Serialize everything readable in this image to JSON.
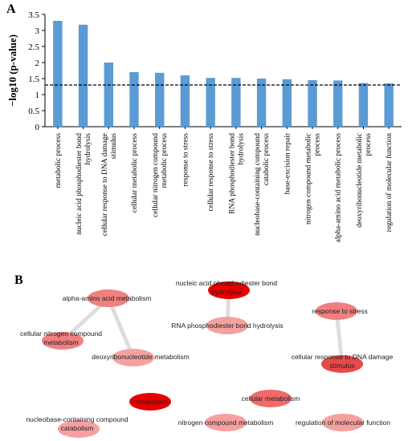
{
  "panel_a_label": "A",
  "panel_b_label": "B",
  "chart_data": {
    "type": "bar",
    "ylabel": "−log10 (p-value)",
    "ylim": [
      0,
      3.5
    ],
    "yticks": [
      "0",
      "0.5",
      "1",
      "1.5",
      "2",
      "2.5",
      "3",
      "3.5"
    ],
    "threshold": 1.3,
    "bar_color": "#5b9bd5",
    "grid": false,
    "categories": [
      [
        "metabolic process"
      ],
      [
        "nucleic acid phosphodiester bond",
        "hydrolysis"
      ],
      [
        "cellular response to DNA damage",
        "stimulus"
      ],
      [
        "cellular metabolic process"
      ],
      [
        "cellular nitrogen compound",
        "metabolic process"
      ],
      [
        "response to stress"
      ],
      [
        "cellular response to stress"
      ],
      [
        "RNA phosphodiester bond",
        "hydrolysis"
      ],
      [
        "nucleobase-containing compound",
        "catabolic process"
      ],
      [
        "base-excision repair"
      ],
      [
        "nitrogen compound metabolic",
        "process"
      ],
      [
        "alpha-amino acid metabolic process"
      ],
      [
        "deoxyribonucleotide metabolic",
        "process"
      ],
      [
        "regulation of molecular function"
      ]
    ],
    "values": [
      3.3,
      3.18,
      2.0,
      1.7,
      1.68,
      1.6,
      1.52,
      1.52,
      1.5,
      1.48,
      1.45,
      1.44,
      1.36,
      1.35
    ]
  },
  "network": {
    "nodes": [
      {
        "label": "alpha-amino acid metabolism",
        "color": "#f08080"
      },
      {
        "label": "cellular nitrogen compound metabolism",
        "color": "#f08080"
      },
      {
        "label": "deoxyribonucleotide metabolism",
        "color": "#f7a0a0"
      },
      {
        "label": "nucleic acid phosphodiester bond hydrolysis",
        "color": "#e60000"
      },
      {
        "label": "RNA phosphodiester bond hydrolysis",
        "color": "#f7a0a0"
      },
      {
        "label": "response to stress",
        "color": "#f08080"
      },
      {
        "label": "cellular response to DNA damage stimulus",
        "color": "#e84848"
      },
      {
        "label": "metabolism",
        "color": "#e60000"
      },
      {
        "label": "cellular metabolism",
        "color": "#ef6a6a"
      },
      {
        "label": "nucleobase-containing compound catabolism",
        "color": "#f7a0a0"
      },
      {
        "label": "nitrogen compound metabolism",
        "color": "#f7a0a0"
      },
      {
        "label": "regulation of molecular function",
        "color": "#f7a0a0"
      }
    ],
    "edges": [
      [
        0,
        1
      ],
      [
        0,
        2
      ],
      [
        3,
        4
      ],
      [
        5,
        6
      ]
    ],
    "edge_color": "#dddddd"
  }
}
